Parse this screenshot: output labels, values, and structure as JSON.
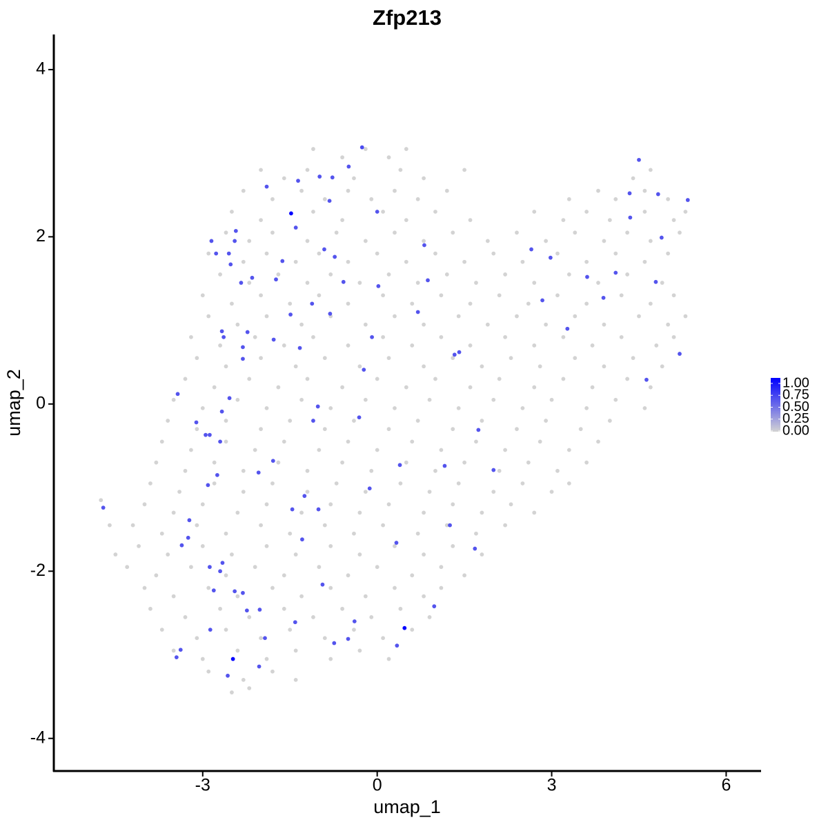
{
  "chart_data": {
    "type": "scatter",
    "title": "Zfp213",
    "x_label": "umap_1",
    "y_label": "umap_2",
    "xlim": [
      -5.56,
      6.6
    ],
    "ylim": [
      -4.39,
      4.42
    ],
    "xticks": [
      -3,
      0,
      3,
      6
    ],
    "yticks": [
      -4,
      -2,
      0,
      2,
      4
    ],
    "grid": false,
    "color_scale": {
      "low": "#d3d3d3",
      "high": "#0000ff",
      "lim": [
        0,
        1
      ],
      "ticks": [
        {
          "value": 0,
          "label": "0.00"
        },
        {
          "value": 0.25,
          "label": "0.25"
        },
        {
          "value": 0.5,
          "label": "0.50"
        },
        {
          "value": 0.75,
          "label": "0.75"
        },
        {
          "value": 1,
          "label": "1.00"
        }
      ]
    },
    "x": [
      -1.1,
      -0.6,
      -0.2,
      0.2,
      0.5,
      -2.0,
      -1.6,
      -1.2,
      -0.4,
      0.4,
      0.8,
      1.5,
      4.4,
      4.7,
      -2.3,
      -1.8,
      -1.3,
      -0.9,
      -0.5,
      -0.1,
      0.3,
      0.7,
      1.2,
      3.3,
      3.8,
      4.1,
      4.6,
      5.0,
      -2.5,
      -2.0,
      -1.1,
      -0.6,
      0.1,
      0.5,
      1.0,
      1.6,
      2.7,
      3.2,
      3.6,
      4.0,
      4.6,
      5.1,
      5.3,
      -2.6,
      -2.2,
      -1.8,
      -1.2,
      -0.7,
      -0.2,
      0.3,
      0.8,
      1.3,
      1.9,
      2.4,
      2.9,
      3.4,
      3.9,
      4.3,
      4.7,
      5.2,
      -2.9,
      -2.3,
      -1.9,
      -1.4,
      -1.0,
      -0.5,
      0.0,
      0.5,
      1.0,
      1.5,
      2.0,
      2.5,
      3.1,
      3.6,
      4.1,
      4.6,
      5.0,
      -2.7,
      -2.2,
      -1.7,
      -1.2,
      -0.8,
      -0.3,
      0.2,
      0.7,
      1.2,
      1.7,
      2.2,
      2.7,
      3.3,
      3.8,
      4.3,
      4.9,
      -3.0,
      -2.5,
      -2.0,
      -1.5,
      -1.0,
      -0.5,
      0.1,
      0.6,
      1.1,
      1.6,
      2.1,
      2.6,
      3.1,
      3.6,
      4.2,
      4.7,
      5.1,
      -2.9,
      -2.4,
      -1.9,
      -1.3,
      -0.8,
      -0.2,
      0.3,
      0.8,
      1.4,
      1.9,
      2.4,
      2.9,
      3.4,
      3.9,
      4.5,
      5.0,
      5.3,
      -3.2,
      -2.7,
      -2.1,
      -1.6,
      -1.1,
      -0.5,
      0.1,
      0.6,
      1.1,
      1.6,
      2.2,
      2.7,
      3.2,
      3.7,
      4.2,
      4.8,
      5.1,
      -3.1,
      -2.6,
      -2.0,
      -1.4,
      -0.9,
      -0.3,
      0.2,
      0.8,
      1.3,
      1.8,
      2.3,
      2.8,
      3.4,
      3.9,
      4.4,
      4.9,
      -3.3,
      -2.8,
      -2.2,
      -1.7,
      -1.2,
      -0.6,
      0.0,
      0.5,
      1.0,
      1.6,
      2.1,
      2.7,
      3.2,
      3.7,
      4.3,
      4.7,
      -3.5,
      -3.0,
      -2.4,
      -1.9,
      -1.3,
      -0.8,
      -0.2,
      0.3,
      0.9,
      1.4,
      2.0,
      2.5,
      3.0,
      3.6,
      4.1,
      4.6,
      -3.6,
      -3.1,
      -2.6,
      -2.0,
      -1.5,
      -0.9,
      -0.4,
      0.2,
      0.7,
      1.3,
      1.8,
      2.4,
      2.9,
      3.5,
      4.0,
      -3.7,
      -3.2,
      -2.6,
      -2.1,
      -1.6,
      -1.0,
      -0.5,
      0.0,
      0.6,
      1.1,
      1.7,
      2.2,
      2.8,
      3.3,
      3.8,
      -3.8,
      -3.3,
      -2.8,
      -2.3,
      -1.7,
      -1.2,
      -0.6,
      -0.1,
      0.5,
      1.0,
      1.5,
      2.1,
      2.6,
      3.1,
      3.6,
      -3.9,
      -3.4,
      -2.8,
      -2.3,
      -1.8,
      -1.2,
      -0.7,
      -0.2,
      0.4,
      0.9,
      1.4,
      2.0,
      2.5,
      3.0,
      3.3,
      -4.0,
      -3.5,
      -3.0,
      -2.4,
      -1.9,
      -1.3,
      -0.8,
      -0.3,
      0.2,
      0.8,
      1.3,
      1.8,
      2.3,
      2.7,
      -4.2,
      -3.7,
      -3.1,
      -2.6,
      -2.0,
      -1.5,
      -0.9,
      -0.4,
      0.1,
      0.7,
      1.2,
      1.7,
      2.2,
      -4.1,
      -3.6,
      -3.0,
      -2.5,
      -1.9,
      -1.4,
      -0.8,
      -0.3,
      0.3,
      0.8,
      1.3,
      1.8,
      -4.3,
      -3.8,
      -3.2,
      -2.6,
      -2.1,
      -1.6,
      -1.0,
      -0.5,
      0.0,
      0.6,
      1.1,
      1.5,
      -4.0,
      -3.5,
      -2.9,
      -2.4,
      -1.8,
      -1.3,
      -0.8,
      -0.2,
      0.3,
      0.8,
      1.1,
      -3.9,
      -3.3,
      -2.7,
      -2.2,
      -1.6,
      -1.1,
      -0.6,
      -0.1,
      0.4,
      0.9,
      -3.7,
      -3.1,
      -2.6,
      -2.0,
      -1.5,
      -0.9,
      -0.4,
      0.1,
      0.6,
      -3.5,
      -3.0,
      -2.4,
      -1.9,
      -1.4,
      -0.8,
      -0.3,
      0.2,
      -2.9,
      -2.3,
      -1.8,
      -1.4,
      -2.5,
      -2.2,
      -4.75,
      -4.6,
      -4.5,
      -0.26,
      -0.49,
      -1.36,
      -0.99,
      -0.77,
      -1.9,
      -1.48,
      0,
      -0.82,
      -1.4,
      -2.43,
      -2.85,
      -2.45,
      -2.77,
      -2.55,
      -0.91,
      -0.73,
      -1.63,
      -2.52,
      0.81,
      2.65,
      2.98,
      4.34,
      4.5,
      4.83,
      5.34,
      4.35,
      4.89,
      4.1,
      3.61,
      3.89,
      4.79,
      2.84,
      0.87,
      0.02,
      -0.58,
      -1.74,
      -2.15,
      -2.34,
      -1.12,
      -1.49,
      -0.81,
      0.7,
      -0.09,
      -1.78,
      -2.23,
      -2.67,
      -2.64,
      -2.31,
      -2.31,
      -1.33,
      1.33,
      1.41,
      3.27,
      5.2,
      4.63,
      -0.23,
      -3.43,
      -2.54,
      -1.02,
      -1.1,
      -3.11,
      -2.67,
      -0.31,
      -2.95,
      -2.88,
      -2.7,
      1.74,
      -1.79,
      0.39,
      1.16,
      2.0,
      -2.75,
      -2.04,
      -2.91,
      -0.13,
      -1.25,
      -1.01,
      -1.46,
      -4.71,
      -3.23,
      1.25,
      -3.25,
      -1.29,
      -3.36,
      0.33,
      1.68,
      -2.66,
      -2.88,
      -2.7,
      -0.94,
      -2.81,
      -2.45,
      -2.31,
      0.98,
      -2.24,
      -2.02,
      -0.39,
      -1.41,
      0.47,
      -2.87,
      -1.93,
      -0.5,
      -0.74,
      0.34,
      -3.38,
      -3.45,
      -2.48,
      -2.03,
      -2.57
    ],
    "y": [
      3.05,
      2.95,
      3.05,
      2.95,
      3.05,
      2.8,
      2.7,
      2.8,
      2.7,
      2.8,
      2.7,
      2.8,
      2.7,
      2.8,
      2.55,
      2.45,
      2.55,
      2.45,
      2.55,
      2.45,
      2.55,
      2.45,
      2.55,
      2.45,
      2.55,
      2.45,
      2.55,
      2.45,
      2.3,
      2.2,
      2.3,
      2.2,
      2.3,
      2.2,
      2.3,
      2.2,
      2.3,
      2.2,
      2.3,
      2.2,
      2.3,
      2.2,
      2.3,
      2.05,
      1.95,
      2.05,
      1.95,
      2.05,
      1.95,
      2.05,
      1.95,
      2.05,
      1.95,
      2.05,
      1.95,
      2.05,
      1.95,
      2.05,
      1.95,
      2.05,
      1.8,
      1.7,
      1.8,
      1.7,
      1.8,
      1.7,
      1.8,
      1.7,
      1.8,
      1.7,
      1.8,
      1.7,
      1.8,
      1.7,
      1.8,
      1.7,
      1.8,
      1.55,
      1.45,
      1.55,
      1.45,
      1.55,
      1.45,
      1.55,
      1.45,
      1.55,
      1.45,
      1.55,
      1.45,
      1.55,
      1.45,
      1.55,
      1.45,
      1.3,
      1.2,
      1.3,
      1.2,
      1.3,
      1.2,
      1.3,
      1.2,
      1.3,
      1.2,
      1.3,
      1.2,
      1.3,
      1.2,
      1.3,
      1.2,
      1.3,
      1.05,
      0.95,
      1.05,
      0.95,
      1.05,
      0.95,
      1.05,
      0.95,
      1.05,
      0.95,
      1.05,
      0.95,
      1.05,
      0.95,
      1.05,
      0.95,
      1.05,
      0.8,
      0.7,
      0.8,
      0.7,
      0.8,
      0.7,
      0.8,
      0.7,
      0.8,
      0.7,
      0.8,
      0.7,
      0.8,
      0.7,
      0.8,
      0.7,
      0.8,
      0.55,
      0.45,
      0.55,
      0.45,
      0.55,
      0.45,
      0.55,
      0.45,
      0.55,
      0.45,
      0.55,
      0.45,
      0.55,
      0.45,
      0.55,
      0.45,
      0.3,
      0.2,
      0.3,
      0.2,
      0.3,
      0.2,
      0.3,
      0.2,
      0.3,
      0.2,
      0.3,
      0.2,
      0.3,
      0.2,
      0.3,
      0.2,
      0.05,
      -0.05,
      0.05,
      -0.05,
      0.05,
      -0.05,
      0.05,
      -0.05,
      0.05,
      -0.05,
      0.05,
      -0.05,
      0.05,
      -0.05,
      0.05,
      -0.05,
      -0.2,
      -0.3,
      -0.2,
      -0.3,
      -0.2,
      -0.3,
      -0.2,
      -0.3,
      -0.2,
      -0.3,
      -0.2,
      -0.3,
      -0.2,
      -0.3,
      -0.2,
      -0.45,
      -0.55,
      -0.45,
      -0.55,
      -0.45,
      -0.55,
      -0.45,
      -0.55,
      -0.45,
      -0.55,
      -0.45,
      -0.55,
      -0.45,
      -0.55,
      -0.45,
      -0.7,
      -0.8,
      -0.7,
      -0.8,
      -0.7,
      -0.8,
      -0.7,
      -0.8,
      -0.7,
      -0.8,
      -0.7,
      -0.8,
      -0.7,
      -0.8,
      -0.7,
      -0.95,
      -1.05,
      -0.95,
      -1.05,
      -0.95,
      -1.05,
      -0.95,
      -1.05,
      -0.95,
      -1.05,
      -0.95,
      -1.05,
      -0.95,
      -1.05,
      -0.95,
      -1.2,
      -1.3,
      -1.2,
      -1.3,
      -1.2,
      -1.3,
      -1.2,
      -1.3,
      -1.2,
      -1.3,
      -1.2,
      -1.3,
      -1.2,
      -1.3,
      -1.45,
      -1.55,
      -1.45,
      -1.55,
      -1.45,
      -1.55,
      -1.45,
      -1.55,
      -1.45,
      -1.55,
      -1.45,
      -1.55,
      -1.45,
      -1.7,
      -1.8,
      -1.7,
      -1.8,
      -1.7,
      -1.8,
      -1.7,
      -1.8,
      -1.7,
      -1.8,
      -1.7,
      -1.8,
      -1.95,
      -2.05,
      -1.95,
      -2.05,
      -1.95,
      -2.05,
      -1.95,
      -2.05,
      -1.95,
      -2.05,
      -1.95,
      -2.05,
      -2.2,
      -2.3,
      -2.2,
      -2.3,
      -2.2,
      -2.3,
      -2.2,
      -2.3,
      -2.2,
      -2.3,
      -2.2,
      -2.45,
      -2.55,
      -2.45,
      -2.55,
      -2.45,
      -2.55,
      -2.45,
      -2.55,
      -2.45,
      -2.55,
      -2.7,
      -2.8,
      -2.7,
      -2.8,
      -2.7,
      -2.8,
      -2.7,
      -2.8,
      -2.7,
      -2.95,
      -3.05,
      -2.95,
      -3.05,
      -2.95,
      -3.05,
      -2.95,
      -3.05,
      -3.2,
      -3.3,
      -3.2,
      -3.3,
      -3.45,
      -3.4,
      -1.15,
      -1.45,
      -1.8,
      3.07,
      2.84,
      2.67,
      2.72,
      2.71,
      2.6,
      2.28,
      2.3,
      2.43,
      2.11,
      2.07,
      1.95,
      1.95,
      1.8,
      1.8,
      1.85,
      1.76,
      1.71,
      1.67,
      1.9,
      1.85,
      1.75,
      2.52,
      2.92,
      2.51,
      2.44,
      2.23,
      1.99,
      1.57,
      1.52,
      1.27,
      1.46,
      1.24,
      1.48,
      1.41,
      1.46,
      1.49,
      1.51,
      1.45,
      1.2,
      1.07,
      1.08,
      1.1,
      0.8,
      0.77,
      0.86,
      0.87,
      0.8,
      0.68,
      0.54,
      0.67,
      0.59,
      0.62,
      0.9,
      0.6,
      0.29,
      0.41,
      0.12,
      0.07,
      -0.03,
      -0.2,
      -0.22,
      -0.09,
      -0.16,
      -0.37,
      -0.37,
      -0.45,
      -0.31,
      -0.68,
      -0.73,
      -0.74,
      -0.79,
      -0.85,
      -0.82,
      -0.97,
      -1.01,
      -1.1,
      -1.26,
      -1.26,
      -1.24,
      -1.39,
      -1.45,
      -1.6,
      -1.62,
      -1.69,
      -1.66,
      -1.73,
      -1.9,
      -1.95,
      -2.0,
      -2.16,
      -2.23,
      -2.24,
      -2.26,
      -2.42,
      -2.47,
      -2.46,
      -2.6,
      -2.61,
      -2.68,
      -2.7,
      -2.8,
      -2.81,
      -2.86,
      -2.89,
      -2.94,
      -3.03,
      -3.05,
      -3.14,
      -3.25
    ],
    "values": [
      0,
      0,
      0,
      0,
      0,
      0,
      0,
      0,
      0,
      0,
      0,
      0,
      0,
      0,
      0,
      0,
      0,
      0,
      0,
      0,
      0,
      0,
      0,
      0,
      0,
      0,
      0,
      0,
      0,
      0,
      0,
      0,
      0,
      0,
      0,
      0,
      0,
      0,
      0,
      0,
      0,
      0,
      0,
      0,
      0,
      0,
      0,
      0,
      0,
      0,
      0,
      0,
      0,
      0,
      0,
      0,
      0,
      0,
      0,
      0,
      0,
      0,
      0,
      0,
      0,
      0,
      0,
      0,
      0,
      0,
      0,
      0,
      0,
      0,
      0,
      0,
      0,
      0,
      0,
      0,
      0,
      0,
      0,
      0,
      0,
      0,
      0,
      0,
      0,
      0,
      0,
      0,
      0,
      0,
      0,
      0,
      0,
      0,
      0,
      0,
      0,
      0,
      0,
      0,
      0,
      0,
      0,
      0,
      0,
      0,
      0,
      0,
      0,
      0,
      0,
      0,
      0,
      0,
      0,
      0,
      0,
      0,
      0,
      0,
      0,
      0,
      0,
      0,
      0,
      0,
      0,
      0,
      0,
      0,
      0,
      0,
      0,
      0,
      0,
      0,
      0,
      0,
      0,
      0,
      0,
      0,
      0,
      0,
      0,
      0,
      0,
      0,
      0,
      0,
      0,
      0,
      0,
      0,
      0,
      0,
      0,
      0,
      0,
      0,
      0,
      0,
      0,
      0,
      0,
      0,
      0,
      0,
      0,
      0,
      0,
      0,
      0,
      0,
      0,
      0,
      0,
      0,
      0,
      0,
      0,
      0,
      0,
      0,
      0,
      0,
      0,
      0,
      0,
      0,
      0,
      0,
      0,
      0,
      0,
      0,
      0,
      0,
      0,
      0,
      0,
      0,
      0,
      0,
      0,
      0,
      0,
      0,
      0,
      0,
      0,
      0,
      0,
      0,
      0,
      0,
      0,
      0,
      0,
      0,
      0,
      0,
      0,
      0,
      0,
      0,
      0,
      0,
      0,
      0,
      0,
      0,
      0,
      0,
      0,
      0,
      0,
      0,
      0,
      0,
      0,
      0,
      0,
      0,
      0,
      0,
      0,
      0,
      0,
      0,
      0,
      0,
      0,
      0,
      0,
      0,
      0,
      0,
      0,
      0,
      0,
      0,
      0,
      0,
      0,
      0,
      0,
      0,
      0,
      0,
      0,
      0,
      0,
      0,
      0,
      0,
      0,
      0,
      0,
      0,
      0,
      0,
      0,
      0,
      0,
      0,
      0,
      0,
      0,
      0,
      0,
      0,
      0,
      0,
      0,
      0,
      0,
      0,
      0,
      0,
      0,
      0,
      0,
      0,
      0,
      0,
      0,
      0,
      0,
      0,
      0,
      0,
      0,
      0,
      0,
      0,
      0,
      0,
      0,
      0,
      0,
      0,
      0,
      0,
      0,
      0,
      0,
      0,
      0,
      0,
      0,
      0,
      0,
      0,
      0,
      0,
      0,
      0,
      0,
      0,
      0,
      0,
      0,
      0,
      0,
      0,
      0.65,
      0.6,
      0.6,
      0.6,
      0.6,
      0.6,
      1,
      0.6,
      0.6,
      0.6,
      0.6,
      0.6,
      0.6,
      0.6,
      0.6,
      0.6,
      0.6,
      0.6,
      0.6,
      0.6,
      0.6,
      0.6,
      0.6,
      0.6,
      0.6,
      0.6,
      0.6,
      0.6,
      0.6,
      0.6,
      0.6,
      0.6,
      0.6,
      0.6,
      0.6,
      0.6,
      0.6,
      0.6,
      0.6,
      0.6,
      0.6,
      0.6,
      0.6,
      0.6,
      0.6,
      0.6,
      0.6,
      0.6,
      0.6,
      0.6,
      0.6,
      0.6,
      0.6,
      0.6,
      0.6,
      0.6,
      0.6,
      0.6,
      0.6,
      0.6,
      0.6,
      0.6,
      0.6,
      0.6,
      0.6,
      0.6,
      0.6,
      0.6,
      0.6,
      0.6,
      0.6,
      0.6,
      0.6,
      0.6,
      0.6,
      0.6,
      0.6,
      0.6,
      0.6,
      0.6,
      0.6,
      0.6,
      0.6,
      0.6,
      0.6,
      0.6,
      0.6,
      0.6,
      0.6,
      0.6,
      0.6,
      0.6,
      0.6,
      0.6,
      0.6,
      0.6,
      0.6,
      0.6,
      0.6,
      1,
      0.6,
      0.6,
      0.6,
      0.6,
      0.6,
      0.6,
      0.6,
      1,
      0.6,
      0.6
    ]
  }
}
